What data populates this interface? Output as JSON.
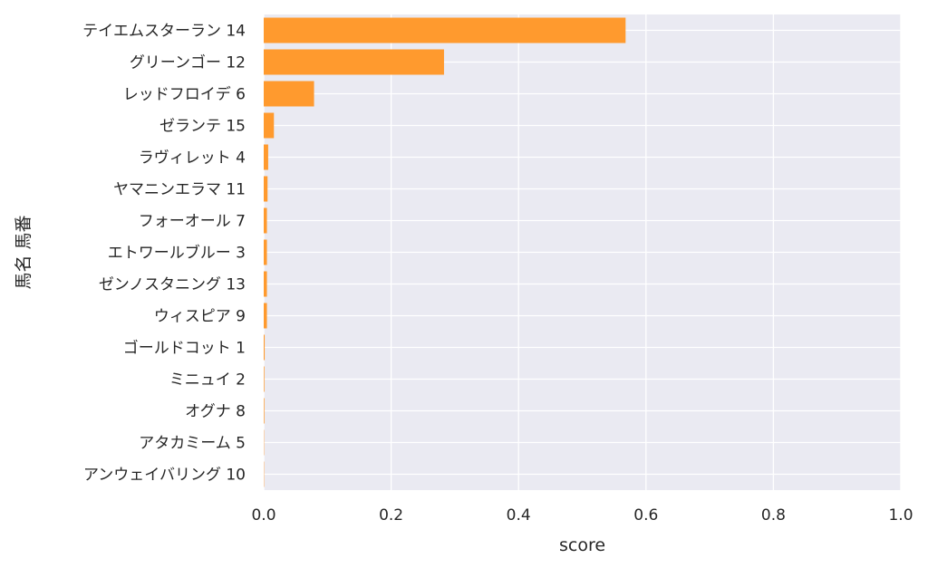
{
  "chart_data": {
    "type": "bar",
    "orientation": "horizontal",
    "xlabel": "score",
    "ylabel": "馬名 馬番",
    "xlim": [
      0,
      1
    ],
    "xticks": [
      "0.0",
      "0.2",
      "0.4",
      "0.6",
      "0.8",
      "1.0"
    ],
    "grid": true,
    "bar_color": "#ff9a2e",
    "background_color": "#eaeaf2",
    "categories": [
      "テイエムスターラン 14",
      "グリーンゴー 12",
      "レッドフロイデ 6",
      "ゼランテ 15",
      "ラヴィレット 4",
      "ヤマニンエラマ 11",
      "フォーオール 7",
      "エトワールブルー 3",
      "ゼンノスタニング 13",
      "ウィスピア 9",
      "ゴールドコット 1",
      "ミニュイ 2",
      "オグナ 8",
      "アタカミーム 5",
      "アンウェイバリング 10"
    ],
    "values": [
      0.568,
      0.283,
      0.079,
      0.016,
      0.007,
      0.006,
      0.005,
      0.005,
      0.005,
      0.005,
      0.0015,
      0.001,
      0.001,
      0.0005,
      0.0005
    ]
  }
}
